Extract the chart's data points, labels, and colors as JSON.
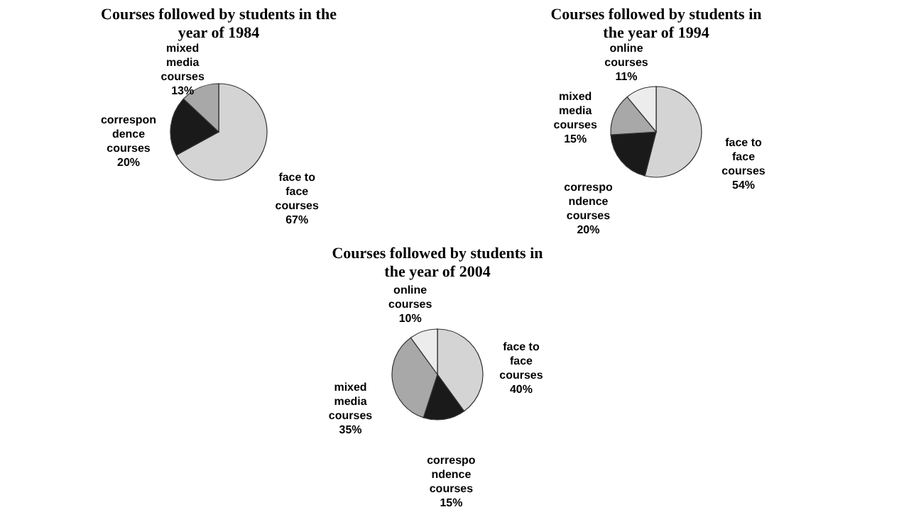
{
  "chart_data": [
    {
      "type": "pie",
      "title": "Courses followed by students in the\nyear of 1984",
      "categories": [
        "face to\nface\ncourses",
        "correspon\ndence\ncourses",
        "mixed\nmedia\ncourses"
      ],
      "values": [
        67,
        20,
        13
      ],
      "value_labels": [
        "67%",
        "20%",
        "13%"
      ],
      "colors": [
        "#d4d4d4",
        "#1a1a1a",
        "#a8a8a8"
      ]
    },
    {
      "type": "pie",
      "title": "Courses followed by students in\nthe year of 1994",
      "categories": [
        "face to\nface\ncourses",
        "correspo\nndence\ncourses",
        "mixed\nmedia\ncourses",
        "online\ncourses"
      ],
      "values": [
        54,
        20,
        15,
        11
      ],
      "value_labels": [
        "54%",
        "20%",
        "15%",
        "11%"
      ],
      "colors": [
        "#d4d4d4",
        "#1a1a1a",
        "#a8a8a8",
        "#ececec"
      ]
    },
    {
      "type": "pie",
      "title": "Courses followed by students in\nthe year of 2004",
      "categories": [
        "face to\nface\ncourses",
        "correspo\nndence\ncourses",
        "mixed\nmedia\ncourses",
        "online\ncourses"
      ],
      "values": [
        40,
        15,
        35,
        10
      ],
      "value_labels": [
        "40%",
        "15%",
        "35%",
        "10%"
      ],
      "colors": [
        "#d4d4d4",
        "#1a1a1a",
        "#a8a8a8",
        "#ececec"
      ]
    }
  ]
}
